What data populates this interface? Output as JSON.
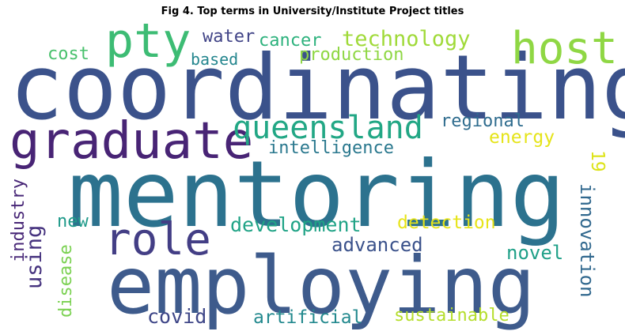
{
  "chart_data": {
    "type": "wordcloud",
    "title": "Fig 4. Top terms in University/Institute Project titles",
    "words": [
      {
        "text": "coordinating",
        "color": "#3b528b"
      },
      {
        "text": "mentoring",
        "color": "#2c728e"
      },
      {
        "text": "employing",
        "color": "#3e5b8c"
      },
      {
        "text": "graduate",
        "color": "#482475"
      },
      {
        "text": "queensland",
        "color": "#22a785"
      },
      {
        "text": "host",
        "color": "#8fd744"
      },
      {
        "text": "pty",
        "color": "#3dbc74"
      },
      {
        "text": "role",
        "color": "#433e85"
      },
      {
        "text": "technology",
        "color": "#a0da39"
      },
      {
        "text": "development",
        "color": "#20a386"
      },
      {
        "text": "water",
        "color": "#414487"
      },
      {
        "text": "cancer",
        "color": "#2db27d"
      },
      {
        "text": "cost",
        "color": "#4ac16d"
      },
      {
        "text": "based",
        "color": "#24868e"
      },
      {
        "text": "production",
        "color": "#8fd744"
      },
      {
        "text": "regional",
        "color": "#2f6c8e"
      },
      {
        "text": "intelligence",
        "color": "#2a788e"
      },
      {
        "text": "energy",
        "color": "#e5e419"
      },
      {
        "text": "19",
        "color": "#dde318"
      },
      {
        "text": "detection",
        "color": "#e7e419"
      },
      {
        "text": "new",
        "color": "#1f9a8a"
      },
      {
        "text": "advanced",
        "color": "#3b528b"
      },
      {
        "text": "novel",
        "color": "#1fa088"
      },
      {
        "text": "innovation",
        "color": "#31688e"
      },
      {
        "text": "industry",
        "color": "#482777"
      },
      {
        "text": "using",
        "color": "#46337f"
      },
      {
        "text": "disease",
        "color": "#7ad151"
      },
      {
        "text": "covid",
        "color": "#3f4788"
      },
      {
        "text": "artificial",
        "color": "#23898e"
      },
      {
        "text": "sustainable",
        "color": "#b5de2b"
      }
    ]
  }
}
